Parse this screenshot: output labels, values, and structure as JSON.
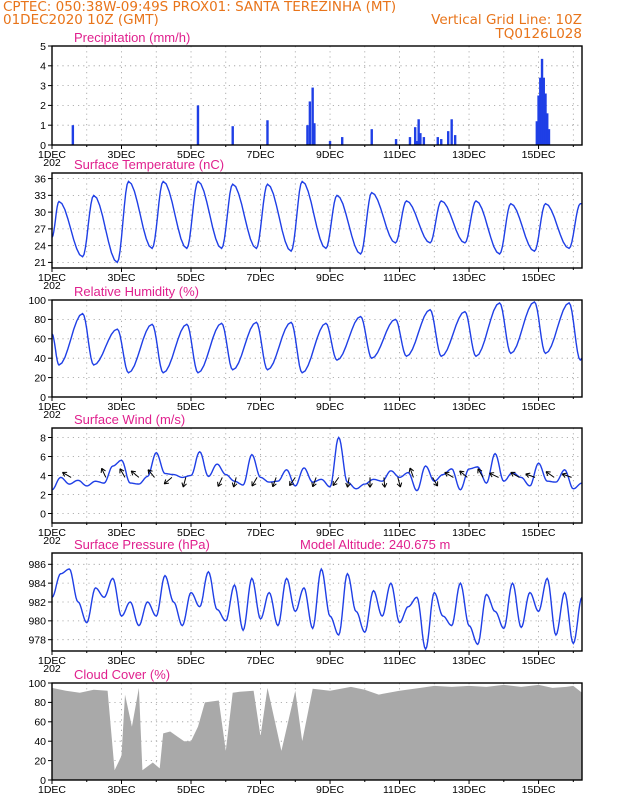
{
  "header": {
    "title": "CPTEC:   050:38W-09:49S   PROX01: SANTA TEREZINHA (MT)",
    "date": "01DEC2020 10Z (GMT)",
    "grid_line": "Vertical Grid Line: 10Z",
    "code": "TQ0126L028"
  },
  "colors": {
    "header": "#e8741a",
    "panel_title": "#e0208e",
    "line": "#1f3fe6",
    "bar": "#1f3fe6",
    "cloud": "#a9a9a9"
  },
  "x_axis": {
    "tick_labels": [
      "1DEC",
      "3DEC",
      "5DEC",
      "7DEC",
      "9DEC",
      "11DEC",
      "13DEC",
      "15DEC"
    ],
    "stub_label": "202",
    "range_days": [
      0,
      15.25
    ]
  },
  "chart_data": [
    {
      "id": "precip",
      "type": "bar",
      "title": "Precipitation (mm/h)",
      "ylim": [
        0,
        5
      ],
      "yticks": [
        0,
        1,
        2,
        3,
        4,
        5
      ],
      "x_unit": "days since 01DEC2020 10Z",
      "bars": [
        [
          0.6,
          1.0
        ],
        [
          4.2,
          2.0
        ],
        [
          5.2,
          0.95
        ],
        [
          6.2,
          1.25
        ],
        [
          7.35,
          1.0
        ],
        [
          7.42,
          2.2
        ],
        [
          7.5,
          2.9
        ],
        [
          7.55,
          1.1
        ],
        [
          8.0,
          0.2
        ],
        [
          8.35,
          0.4
        ],
        [
          9.2,
          0.8
        ],
        [
          9.9,
          0.3
        ],
        [
          10.3,
          0.4
        ],
        [
          10.45,
          0.9
        ],
        [
          10.5,
          0.2
        ],
        [
          10.55,
          1.3
        ],
        [
          10.6,
          0.6
        ],
        [
          10.7,
          0.4
        ],
        [
          11.1,
          0.4
        ],
        [
          11.2,
          0.3
        ],
        [
          11.4,
          0.7
        ],
        [
          11.5,
          1.3
        ],
        [
          11.6,
          0.5
        ],
        [
          13.95,
          1.2
        ],
        [
          14.0,
          2.5
        ],
        [
          14.05,
          3.4
        ],
        [
          14.1,
          4.35
        ],
        [
          14.15,
          3.4
        ],
        [
          14.2,
          2.6
        ],
        [
          14.25,
          1.6
        ],
        [
          14.3,
          0.8
        ]
      ]
    },
    {
      "id": "temp",
      "type": "line",
      "title": "Surface Temperature (nC)",
      "ylim": [
        20,
        37
      ],
      "yticks": [
        21,
        24,
        27,
        30,
        33,
        36
      ],
      "daily_peak_time": 0.2,
      "daily_trough_time": 0.88,
      "start_value": 25.5,
      "daily_min": [
        22,
        21,
        23.5,
        23.5,
        23.5,
        23.5,
        23,
        23.5,
        22.5,
        24.5,
        24.5,
        24.5,
        22.5,
        23,
        23.5,
        23.5
      ],
      "daily_max": [
        31.9,
        33,
        35.5,
        35.5,
        35.5,
        35,
        35,
        35.5,
        33,
        33.5,
        32,
        32,
        32,
        31.5,
        31.5,
        31.5
      ]
    },
    {
      "id": "rh",
      "type": "line",
      "title": "Relative Humidity (%)",
      "ylim": [
        0,
        100
      ],
      "yticks": [
        0,
        20,
        40,
        60,
        80,
        100
      ],
      "daily_peak_time": 0.88,
      "daily_trough_time": 0.2,
      "start_value": 65,
      "daily_min": [
        33,
        33,
        25,
        25,
        25,
        28,
        28,
        25,
        38,
        40,
        42,
        42,
        42,
        45,
        45,
        38
      ],
      "daily_max": [
        86,
        70,
        75,
        75,
        76,
        77,
        77,
        76,
        83,
        80,
        90,
        88,
        97,
        98,
        97,
        40
      ]
    },
    {
      "id": "wind",
      "type": "line",
      "title": "Surface Wind (m/s)",
      "ylim": [
        -1,
        9
      ],
      "yticks": [
        0,
        2,
        4,
        6,
        8
      ],
      "values": [
        2.5,
        3.8,
        3.1,
        3.5,
        2.9,
        3.4,
        3.2,
        5.0,
        5.6,
        3.2,
        3.1,
        3.9,
        6.4,
        4.2,
        4.1,
        3.8,
        4.0,
        6.5,
        3.9,
        5.2,
        4.1,
        3.4,
        3.0,
        6.2,
        3.8,
        3.3,
        3.4,
        4.6,
        2.9,
        4.8,
        3.3,
        3.6,
        2.8,
        8.0,
        3.3,
        2.6,
        3.1,
        3.6,
        3.4,
        4.5,
        3.8,
        4.3,
        2.4,
        5.0,
        3.4,
        4.1,
        4.7,
        2.5,
        4.7,
        4.9,
        3.2,
        6.3,
        3.4,
        4.3,
        3.8,
        2.9,
        5.3,
        3.4,
        3.3,
        4.6,
        2.6,
        3.2
      ],
      "arrows": [
        [
          0.55,
          300
        ],
        [
          1.55,
          335
        ],
        [
          2.1,
          330
        ],
        [
          2.5,
          310
        ],
        [
          2.95,
          320
        ],
        [
          3.45,
          230
        ],
        [
          3.85,
          195
        ],
        [
          4.9,
          205
        ],
        [
          5.3,
          195
        ],
        [
          5.9,
          210
        ],
        [
          6.45,
          200
        ],
        [
          7.0,
          215
        ],
        [
          7.6,
          200
        ],
        [
          8.25,
          215
        ],
        [
          8.55,
          190
        ],
        [
          9.15,
          180
        ],
        [
          9.55,
          175
        ],
        [
          9.95,
          165
        ],
        [
          10.4,
          340
        ],
        [
          10.95,
          150
        ],
        [
          11.55,
          300
        ],
        [
          11.95,
          310
        ],
        [
          12.4,
          330
        ],
        [
          12.85,
          295
        ],
        [
          13.45,
          300
        ],
        [
          13.9,
          290
        ],
        [
          14.45,
          305
        ],
        [
          14.95,
          290
        ]
      ]
    },
    {
      "id": "pres",
      "type": "line",
      "title": "Surface Pressure (hPa)",
      "annotation": "Model Altitude: 240.675 m",
      "ylim": [
        976.8,
        987.2
      ],
      "yticks": [
        978,
        980,
        982,
        984,
        986
      ],
      "values": [
        982.5,
        985.0,
        985.5,
        982.0,
        979.8,
        983.5,
        982.5,
        984.5,
        980.5,
        982.0,
        979.5,
        982.0,
        980.5,
        984.8,
        982.0,
        979.5,
        983.0,
        981.5,
        985.2,
        981.2,
        980.0,
        983.8,
        979.0,
        984.5,
        980.2,
        983.0,
        979.5,
        984.5,
        981.0,
        983.5,
        979.2,
        985.5,
        980.5,
        978.5,
        985.0,
        981.0,
        978.8,
        983.2,
        980.5,
        984.0,
        979.8,
        981.5,
        982.5,
        977.0,
        983.0,
        980.5,
        979.5,
        984.0,
        979.5,
        977.5,
        982.8,
        981.0,
        979.2,
        984.0,
        979.3,
        983.0,
        981.0,
        984.5,
        978.5,
        983.0,
        977.6,
        982.5
      ]
    },
    {
      "id": "cloud",
      "type": "area",
      "title": "Cloud Cover (%)",
      "ylim": [
        0,
        100
      ],
      "yticks": [
        0,
        20,
        40,
        60,
        80,
        100
      ],
      "x": [
        0,
        0.4,
        0.8,
        1.2,
        1.6,
        1.8,
        2.0,
        2.1,
        2.3,
        2.5,
        2.6,
        2.9,
        3.1,
        3.2,
        3.4,
        3.6,
        3.8,
        4.0,
        4.2,
        4.4,
        4.8,
        5.0,
        5.2,
        5.4,
        5.8,
        6.0,
        6.2,
        6.6,
        7.0,
        7.2,
        7.5,
        8.0,
        8.6,
        9.0,
        9.4,
        10.0,
        10.6,
        11.0,
        11.5,
        12.0,
        12.5,
        13.0,
        13.5,
        14.0,
        14.4,
        14.8,
        15.0,
        15.25
      ],
      "y": [
        95,
        92,
        90,
        93,
        92,
        10,
        25,
        88,
        55,
        95,
        10,
        18,
        12,
        48,
        50,
        45,
        40,
        40,
        55,
        80,
        82,
        30,
        90,
        91,
        92,
        45,
        95,
        30,
        92,
        40,
        94,
        92,
        96,
        93,
        88,
        92,
        95,
        97,
        96,
        97,
        96,
        98,
        96,
        98,
        95,
        96,
        97,
        90
      ]
    }
  ]
}
